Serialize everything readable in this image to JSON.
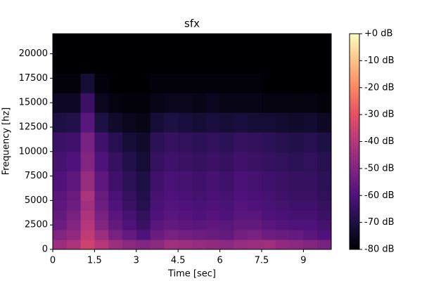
{
  "chart_data": {
    "type": "heatmap",
    "title": "sfx",
    "xlabel": "Time [sec]",
    "ylabel": "Frequency [hz]",
    "colormap": "magma",
    "x": [
      0,
      0.5,
      1,
      1.5,
      2,
      2.5,
      3,
      3.5,
      4,
      4.5,
      5,
      5.5,
      6,
      6.5,
      7,
      7.5,
      8,
      8.5,
      9,
      9.5
    ],
    "y": [
      0,
      1000,
      2000,
      3000,
      4000,
      5000,
      6000,
      8000,
      10000,
      12000,
      14000,
      16000,
      18000,
      20000
    ],
    "z": [
      [
        -45,
        -42,
        -35,
        -40,
        -45,
        -48,
        -50,
        -48,
        -44,
        -45,
        -46,
        -47,
        -48,
        -46,
        -45,
        -44,
        -47,
        -48,
        -50,
        -52
      ],
      [
        -50,
        -47,
        -38,
        -45,
        -52,
        -56,
        -60,
        -55,
        -52,
        -53,
        -54,
        -55,
        -56,
        -53,
        -52,
        -54,
        -55,
        -56,
        -58,
        -60
      ],
      [
        -54,
        -50,
        -40,
        -50,
        -56,
        -60,
        -64,
        -58,
        -56,
        -57,
        -58,
        -57,
        -58,
        -56,
        -56,
        -58,
        -59,
        -60,
        -60,
        -62
      ],
      [
        -56,
        -52,
        -42,
        -52,
        -58,
        -62,
        -66,
        -60,
        -58,
        -59,
        -60,
        -59,
        -60,
        -58,
        -58,
        -60,
        -61,
        -62,
        -62,
        -64
      ],
      [
        -57,
        -54,
        -44,
        -54,
        -60,
        -64,
        -68,
        -61,
        -59,
        -60,
        -61,
        -60,
        -61,
        -59,
        -60,
        -61,
        -62,
        -63,
        -63,
        -65
      ],
      [
        -58,
        -55,
        -42,
        -55,
        -61,
        -65,
        -69,
        -62,
        -60,
        -61,
        -62,
        -61,
        -62,
        -60,
        -61,
        -62,
        -63,
        -64,
        -64,
        -66
      ],
      [
        -60,
        -57,
        -46,
        -57,
        -63,
        -67,
        -70,
        -63,
        -61,
        -62,
        -63,
        -62,
        -63,
        -61,
        -62,
        -63,
        -64,
        -65,
        -65,
        -67
      ],
      [
        -62,
        -60,
        -50,
        -60,
        -65,
        -69,
        -72,
        -65,
        -63,
        -64,
        -65,
        -64,
        -65,
        -63,
        -64,
        -65,
        -66,
        -67,
        -66,
        -68
      ],
      [
        -64,
        -63,
        -52,
        -63,
        -68,
        -72,
        -74,
        -67,
        -65,
        -66,
        -67,
        -66,
        -67,
        -65,
        -66,
        -67,
        -68,
        -69,
        -68,
        -70
      ],
      [
        -70,
        -69,
        -58,
        -70,
        -74,
        -76,
        -77,
        -72,
        -70,
        -71,
        -72,
        -71,
        -72,
        -71,
        -72,
        -72,
        -73,
        -74,
        -73,
        -75
      ],
      [
        -75,
        -75,
        -64,
        -76,
        -78,
        -79,
        -79,
        -77,
        -76,
        -76,
        -77,
        -76,
        -77,
        -77,
        -77,
        -78,
        -78,
        -78,
        -78,
        -79
      ],
      [
        -79,
        -79,
        -72,
        -79,
        -80,
        -80,
        -80,
        -79,
        -79,
        -79,
        -79,
        -79,
        -79,
        -79,
        -79,
        -80,
        -80,
        -80,
        -80,
        -80
      ],
      [
        -80,
        -80,
        -80,
        -80,
        -80,
        -80,
        -80,
        -80,
        -80,
        -80,
        -80,
        -80,
        -80,
        -80,
        -80,
        -80,
        -80,
        -80,
        -80,
        -80
      ],
      [
        -80,
        -80,
        -80,
        -80,
        -80,
        -80,
        -80,
        -80,
        -80,
        -80,
        -80,
        -80,
        -80,
        -80,
        -80,
        -80,
        -80,
        -80,
        -80,
        -80
      ]
    ],
    "xlim": [
      0,
      10
    ],
    "xticks": [
      0,
      1.5,
      3,
      4.5,
      6,
      7.5,
      9
    ],
    "ylim": [
      0,
      22050
    ],
    "yticks": [
      0,
      2500,
      5000,
      7500,
      10000,
      12500,
      15000,
      17500,
      20000
    ],
    "clim": [
      -80,
      0
    ],
    "cticks": [
      {
        "value": 0,
        "label": "+0 dB"
      },
      {
        "value": -10,
        "label": "-10 dB"
      },
      {
        "value": -20,
        "label": "-20 dB"
      },
      {
        "value": -30,
        "label": "-30 dB"
      },
      {
        "value": -40,
        "label": "-40 dB"
      },
      {
        "value": -50,
        "label": "-50 dB"
      },
      {
        "value": -60,
        "label": "-60 dB"
      },
      {
        "value": -70,
        "label": "-70 dB"
      },
      {
        "value": -80,
        "label": "-80 dB"
      }
    ]
  }
}
